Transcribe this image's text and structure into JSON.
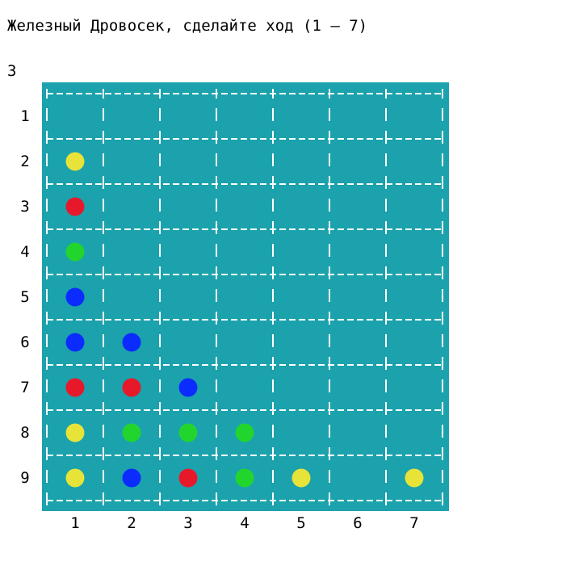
{
  "prompt": "Железный Дровосек, сделайте ход (1 – 7)",
  "input_value": "3",
  "board": {
    "background_color": "#1ba2ad",
    "grid_color": "#ffffff",
    "rows": [
      "1",
      "2",
      "3",
      "4",
      "5",
      "6",
      "7",
      "8",
      "9"
    ],
    "columns": [
      "1",
      "2",
      "3",
      "4",
      "5",
      "6",
      "7"
    ],
    "colors": {
      "yellow": "#e8e338",
      "red": "#e8182b",
      "green": "#22d52d",
      "blue": "#0b2bff"
    },
    "cells": [
      [
        null,
        null,
        null,
        null,
        null,
        null,
        null
      ],
      [
        "yellow",
        null,
        null,
        null,
        null,
        null,
        null
      ],
      [
        "red",
        null,
        null,
        null,
        null,
        null,
        null
      ],
      [
        "green",
        null,
        null,
        null,
        null,
        null,
        null
      ],
      [
        "blue",
        null,
        null,
        null,
        null,
        null,
        null
      ],
      [
        "blue",
        "blue",
        null,
        null,
        null,
        null,
        null
      ],
      [
        "red",
        "red",
        "blue",
        null,
        null,
        null,
        null
      ],
      [
        "yellow",
        "green",
        "green",
        "green",
        null,
        null,
        null
      ],
      [
        "yellow",
        "blue",
        "red",
        "green",
        "yellow",
        null,
        "yellow"
      ]
    ]
  }
}
